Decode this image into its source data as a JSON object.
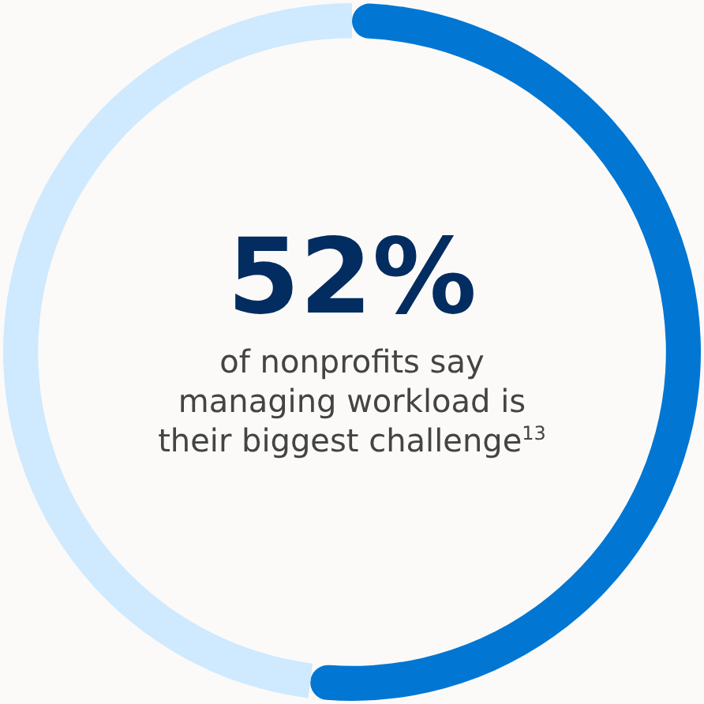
{
  "chart_data": {
    "type": "donut",
    "title": "52%",
    "categories": [
      null,
      null
    ],
    "values": [
      52,
      48
    ],
    "colors": [
      "#0176d3",
      "#cfe9fe"
    ],
    "annotations": [
      "of nonprofits say managing workload is their biggest challenge$^{13}$"
    ]
  }
}
